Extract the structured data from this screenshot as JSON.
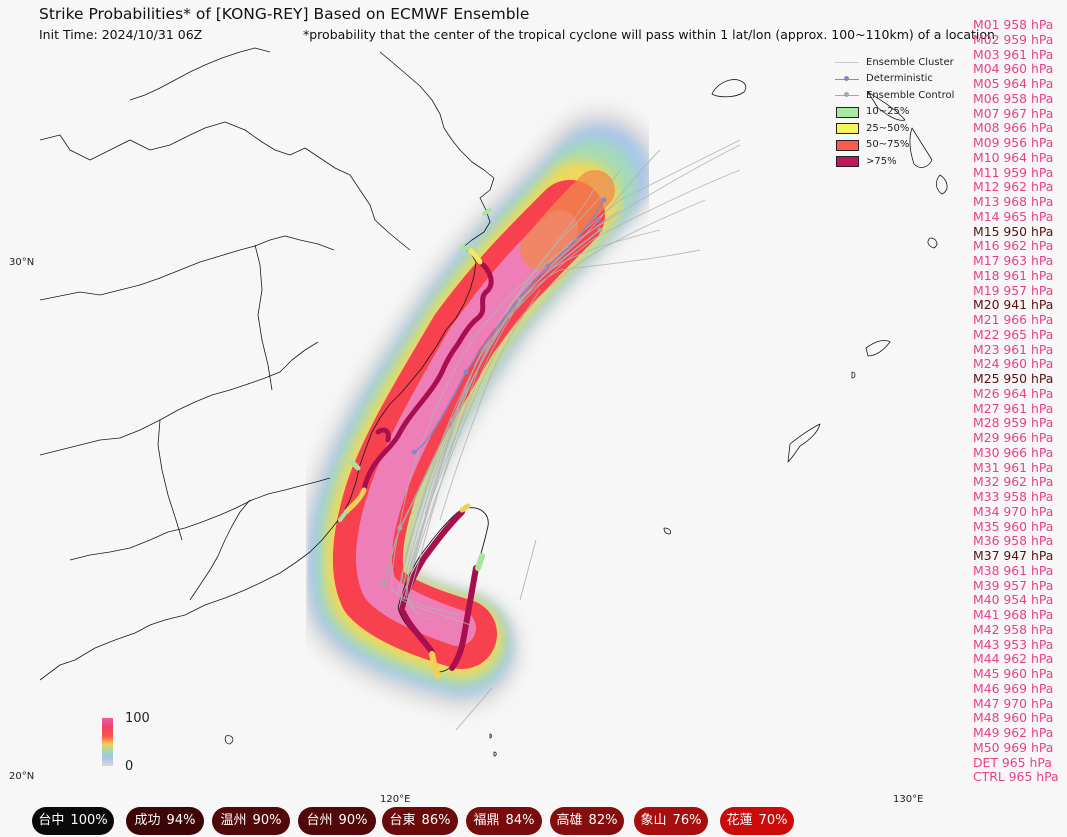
{
  "title": "Strike Probabilities* of [KONG-REY] Based on ECMWF Ensemble",
  "init_time": "Init Time: 2024/10/31 06Z",
  "footnote": "*probability that the center of the tropical cyclone will pass within 1 lat/lon (approx. 100~110km) of a location",
  "legend": {
    "items": [
      {
        "label": "Ensemble Cluster",
        "kind": "line",
        "color": "#c8c8c8"
      },
      {
        "label": "Deterministic",
        "kind": "line-dot",
        "color": "#8a85c4"
      },
      {
        "label": "Ensemble Control",
        "kind": "line-dot",
        "color": "#a8a8a8"
      },
      {
        "label": "10~25%",
        "kind": "box",
        "color": "#a8eba0"
      },
      {
        "label": "25~50%",
        "kind": "box",
        "color": "#f5f55a"
      },
      {
        "label": "50~75%",
        "kind": "box",
        "color": "#fa5a50"
      },
      {
        "label": ">75%",
        "kind": "box",
        "color": "#c2185b"
      }
    ]
  },
  "members": [
    {
      "label": "M01 958 hPa",
      "dark": false
    },
    {
      "label": "M02 959 hPa",
      "dark": false
    },
    {
      "label": "M03 961 hPa",
      "dark": false
    },
    {
      "label": "M04 960 hPa",
      "dark": false
    },
    {
      "label": "M05 964 hPa",
      "dark": false
    },
    {
      "label": "M06 958 hPa",
      "dark": false
    },
    {
      "label": "M07 967 hPa",
      "dark": false
    },
    {
      "label": "M08 966 hPa",
      "dark": false
    },
    {
      "label": "M09 956 hPa",
      "dark": false
    },
    {
      "label": "M10 964 hPa",
      "dark": false
    },
    {
      "label": "M11 959 hPa",
      "dark": false
    },
    {
      "label": "M12 962 hPa",
      "dark": false
    },
    {
      "label": "M13 968 hPa",
      "dark": false
    },
    {
      "label": "M14 965 hPa",
      "dark": false
    },
    {
      "label": "M15 950 hPa",
      "dark": true
    },
    {
      "label": "M16 962 hPa",
      "dark": false
    },
    {
      "label": "M17 963 hPa",
      "dark": false
    },
    {
      "label": "M18 961 hPa",
      "dark": false
    },
    {
      "label": "M19 957 hPa",
      "dark": false
    },
    {
      "label": "M20 941 hPa",
      "dark": true
    },
    {
      "label": "M21 966 hPa",
      "dark": false
    },
    {
      "label": "M22 965 hPa",
      "dark": false
    },
    {
      "label": "M23 961 hPa",
      "dark": false
    },
    {
      "label": "M24 960 hPa",
      "dark": false
    },
    {
      "label": "M25 950 hPa",
      "dark": true
    },
    {
      "label": "M26 964 hPa",
      "dark": false
    },
    {
      "label": "M27 961 hPa",
      "dark": false
    },
    {
      "label": "M28 959 hPa",
      "dark": false
    },
    {
      "label": "M29 966 hPa",
      "dark": false
    },
    {
      "label": "M30 966 hPa",
      "dark": false
    },
    {
      "label": "M31 961 hPa",
      "dark": false
    },
    {
      "label": "M32 962 hPa",
      "dark": false
    },
    {
      "label": "M33 958 hPa",
      "dark": false
    },
    {
      "label": "M34 970 hPa",
      "dark": false
    },
    {
      "label": "M35 960 hPa",
      "dark": false
    },
    {
      "label": "M36 958 hPa",
      "dark": false
    },
    {
      "label": "M37 947 hPa",
      "dark": true
    },
    {
      "label": "M38 961 hPa",
      "dark": false
    },
    {
      "label": "M39 957 hPa",
      "dark": false
    },
    {
      "label": "M40 954 hPa",
      "dark": false
    },
    {
      "label": "M41 968 hPa",
      "dark": false
    },
    {
      "label": "M42 958 hPa",
      "dark": false
    },
    {
      "label": "M43 953 hPa",
      "dark": false
    },
    {
      "label": "M44 962 hPa",
      "dark": false
    },
    {
      "label": "M45 960 hPa",
      "dark": false
    },
    {
      "label": "M46 969 hPa",
      "dark": false
    },
    {
      "label": "M47 970 hPa",
      "dark": false
    },
    {
      "label": "M48 960 hPa",
      "dark": false
    },
    {
      "label": "M49 962 hPa",
      "dark": false
    },
    {
      "label": "M50 969 hPa",
      "dark": false
    },
    {
      "label": "DET 965 hPa",
      "dark": false
    },
    {
      "label": "CTRL 965 hPa",
      "dark": false
    }
  ],
  "colors": {
    "member_light": "#e8408a",
    "member_dark": "#5a1010"
  },
  "lat_labels": [
    "30°N",
    "20°N"
  ],
  "lon_labels": [
    "120°E",
    "130°E"
  ],
  "colorbar": {
    "max": "100",
    "min": "0"
  },
  "cities": [
    {
      "name": "台中",
      "pct": "100%",
      "color": "#0a0a0a"
    },
    {
      "name": "成功",
      "pct": "94%",
      "color": "#3d0606"
    },
    {
      "name": "温州",
      "pct": "90%",
      "color": "#520808"
    },
    {
      "name": "台州",
      "pct": "90%",
      "color": "#520808"
    },
    {
      "name": "台東",
      "pct": "86%",
      "color": "#6a0a0a"
    },
    {
      "name": "福鼎",
      "pct": "84%",
      "color": "#780c0c"
    },
    {
      "name": "高雄",
      "pct": "82%",
      "color": "#850d0d"
    },
    {
      "name": "象山",
      "pct": "76%",
      "color": "#a80e0e"
    },
    {
      "name": "花蓮",
      "pct": "70%",
      "color": "#cc0a0a"
    }
  ]
}
